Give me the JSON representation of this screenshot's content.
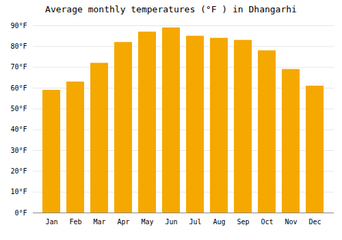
{
  "chart_data": {
    "type": "bar",
    "title": "Average monthly temperatures (°F ) in Dhangarhi",
    "categories": [
      "Jan",
      "Feb",
      "Mar",
      "Apr",
      "May",
      "Jun",
      "Jul",
      "Aug",
      "Sep",
      "Oct",
      "Nov",
      "Dec"
    ],
    "values": [
      59,
      63,
      72,
      82,
      87,
      89,
      85,
      84,
      83,
      78,
      69,
      61
    ],
    "color": "#F5A800",
    "ylim": [
      0,
      90
    ],
    "yticks": [
      {
        "value": 0,
        "label": "0°F"
      },
      {
        "value": 10,
        "label": "10°F"
      },
      {
        "value": 20,
        "label": "20°F"
      },
      {
        "value": 30,
        "label": "30°F"
      },
      {
        "value": 40,
        "label": "40°F"
      },
      {
        "value": 50,
        "label": "50°F"
      },
      {
        "value": 60,
        "label": "60°F"
      },
      {
        "value": 70,
        "label": "70°F"
      },
      {
        "value": 80,
        "label": "80°F"
      },
      {
        "value": 90,
        "label": "90°F"
      }
    ],
    "grid": true
  }
}
